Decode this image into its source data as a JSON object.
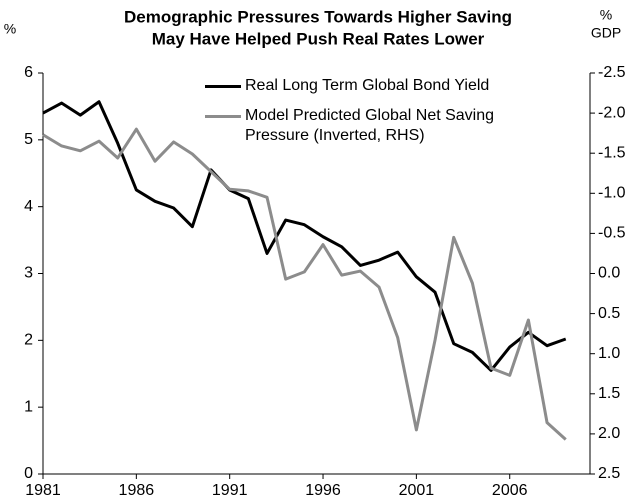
{
  "chart_data": {
    "type": "line",
    "title": [
      "Demographic Pressures Towards Higher Saving",
      "May Have Helped Push Real Rates Lower"
    ],
    "y_label": "%",
    "y2_label": [
      "%",
      "GDP"
    ],
    "x": [
      1981,
      1982,
      1983,
      1984,
      1985,
      1986,
      1987,
      1988,
      1989,
      1990,
      1991,
      1992,
      1993,
      1994,
      1995,
      1996,
      1997,
      1998,
      1999,
      2000,
      2001,
      2002,
      2003,
      2004,
      2005,
      2006,
      2007,
      2008,
      2009
    ],
    "xlim": [
      1981,
      2010.3
    ],
    "xticks": [
      1981,
      1986,
      1991,
      1996,
      2001,
      2006
    ],
    "ylim": [
      0,
      6
    ],
    "yticks": [
      0,
      1,
      2,
      3,
      4,
      5,
      6
    ],
    "y2lim": [
      2.5,
      -2.5
    ],
    "y2ticks": [
      -2.5,
      {
        "value": -2,
        "label": "-2.0"
      },
      -1.5,
      {
        "value": -1,
        "label": "-1.0"
      },
      -0.5,
      {
        "value": 0,
        "label": "0.0"
      },
      0.5,
      {
        "value": 1,
        "label": "1.0"
      },
      1.5,
      {
        "value": 2,
        "label": "2.0"
      },
      2.5
    ],
    "grid": false,
    "legend": "top-right",
    "series": [
      {
        "name": "Real Long Term Global Bond Yield",
        "color": "#000000",
        "values": [
          5.4,
          5.55,
          5.37,
          5.57,
          4.95,
          4.25,
          4.08,
          3.98,
          3.7,
          4.55,
          4.25,
          4.12,
          3.3,
          3.8,
          3.73,
          3.55,
          3.4,
          3.12,
          3.2,
          3.32,
          2.95,
          2.72,
          1.95,
          1.82,
          1.55,
          1.9,
          2.12,
          1.92,
          2.02
        ]
      },
      {
        "name": "Model Predicted Global Net Saving Pressure (Inverted, RHS)",
        "color": "#8c8c8c",
        "axis": "y2",
        "values": [
          -1.73,
          -1.59,
          -1.53,
          -1.65,
          -1.44,
          -1.8,
          -1.4,
          -1.64,
          -1.49,
          -1.27,
          -1.05,
          -1.03,
          -0.95,
          0.07,
          -0.02,
          -0.36,
          0.02,
          -0.03,
          0.17,
          0.8,
          1.95,
          0.83,
          -0.45,
          0.12,
          1.18,
          1.27,
          0.58,
          1.86,
          2.07
        ]
      }
    ]
  }
}
